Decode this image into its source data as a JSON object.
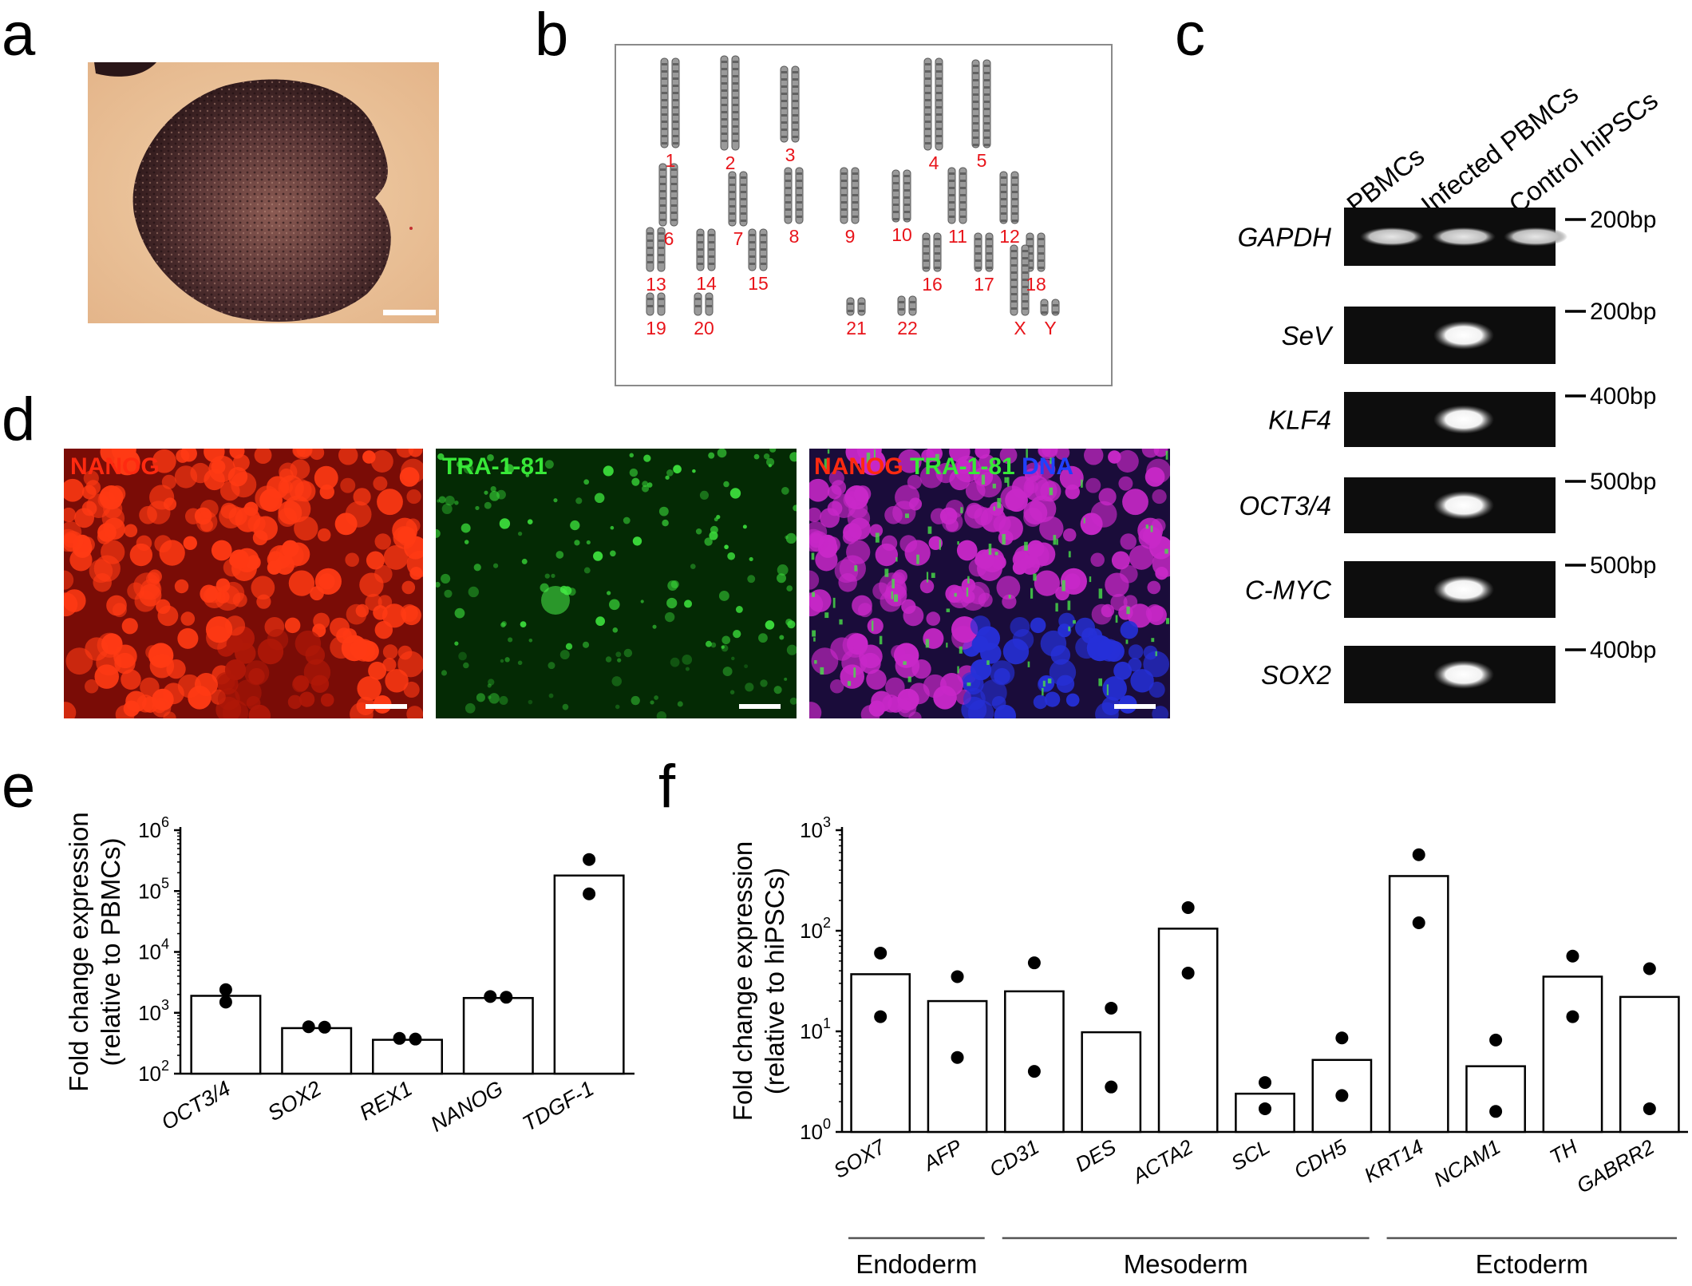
{
  "panels": {
    "a": "a",
    "b": "b",
    "c": "c",
    "d": "d",
    "e": "e",
    "f": "f"
  },
  "karyotype": {
    "labels": [
      "1",
      "2",
      "3",
      "4",
      "5",
      "6",
      "7",
      "8",
      "9",
      "10",
      "11",
      "12",
      "13",
      "14",
      "15",
      "16",
      "17",
      "18",
      "19",
      "20",
      "21",
      "22",
      "X",
      "Y"
    ],
    "label_color": "#e8141a"
  },
  "gel": {
    "lanes": [
      "PBMCs",
      "Infected PBMCs",
      "Control hiPSCs"
    ],
    "genes": [
      "GAPDH",
      "SeV",
      "KLF4",
      "OCT3/4",
      "C-MYC",
      "SOX2"
    ],
    "markers": [
      "200bp",
      "200bp",
      "400bp",
      "500bp",
      "500bp",
      "400bp"
    ],
    "bands": [
      [
        1,
        1,
        1
      ],
      [
        0,
        1,
        0
      ],
      [
        0,
        1,
        0
      ],
      [
        0,
        1,
        0
      ],
      [
        0,
        1,
        0
      ],
      [
        0,
        1,
        0
      ]
    ]
  },
  "immuno": {
    "nanog_label": "NANOG",
    "tra_label": "TRA-1-81",
    "merge_nanog": "NANOG",
    "merge_tra": "TRA-1-81",
    "merge_dna": "DNA",
    "colors": {
      "red": "#ff2a10",
      "green": "#38e838",
      "blue": "#2040ff"
    }
  },
  "chart_data": [
    {
      "type": "bar",
      "panel": "e",
      "ylabel": [
        "Fold change expression",
        "(relative to PBMCs)"
      ],
      "yscale": "log",
      "ylim": [
        100,
        1000000
      ],
      "yticks": [
        {
          "base": "10",
          "exp": "2"
        },
        {
          "base": "10",
          "exp": "3"
        },
        {
          "base": "10",
          "exp": "4"
        },
        {
          "base": "10",
          "exp": "5"
        },
        {
          "base": "10",
          "exp": "6"
        }
      ],
      "categories": [
        "OCT3/4",
        "SOX2",
        "REX1",
        "NANOG",
        "TDGF-1"
      ],
      "values": [
        1900,
        560,
        360,
        1750,
        180000
      ],
      "points": [
        [
          2400,
          1500
        ],
        [
          590,
          580
        ],
        [
          380,
          370
        ],
        [
          1850,
          1800
        ],
        [
          330000,
          90000
        ]
      ]
    },
    {
      "type": "bar",
      "panel": "f",
      "ylabel": [
        "Fold change expression",
        "(relative to hiPSCs)"
      ],
      "yscale": "log",
      "ylim": [
        1,
        1000
      ],
      "yticks": [
        {
          "base": "10",
          "exp": "0"
        },
        {
          "base": "10",
          "exp": "1"
        },
        {
          "base": "10",
          "exp": "2"
        },
        {
          "base": "10",
          "exp": "3"
        }
      ],
      "categories": [
        "SOX7",
        "AFP",
        "CD31",
        "DES",
        "ACTA2",
        "SCL",
        "CDH5",
        "KRT14",
        "NCAM1",
        "TH",
        "GABRR2"
      ],
      "values": [
        37,
        20,
        25,
        9.8,
        105,
        2.4,
        5.2,
        350,
        4.5,
        35,
        22
      ],
      "points": [
        [
          60,
          14
        ],
        [
          35,
          5.5
        ],
        [
          48,
          4
        ],
        [
          17,
          2.8
        ],
        [
          170,
          38
        ],
        [
          3.1,
          1.7
        ],
        [
          8.6,
          2.3
        ],
        [
          570,
          120
        ],
        [
          8.2,
          1.6
        ],
        [
          56,
          14
        ],
        [
          42,
          1.7
        ]
      ],
      "groups": [
        {
          "name": "Endoderm",
          "from": 0,
          "to": 1
        },
        {
          "name": "Mesoderm",
          "from": 2,
          "to": 6
        },
        {
          "name": "Ectoderm",
          "from": 7,
          "to": 10
        }
      ]
    }
  ]
}
